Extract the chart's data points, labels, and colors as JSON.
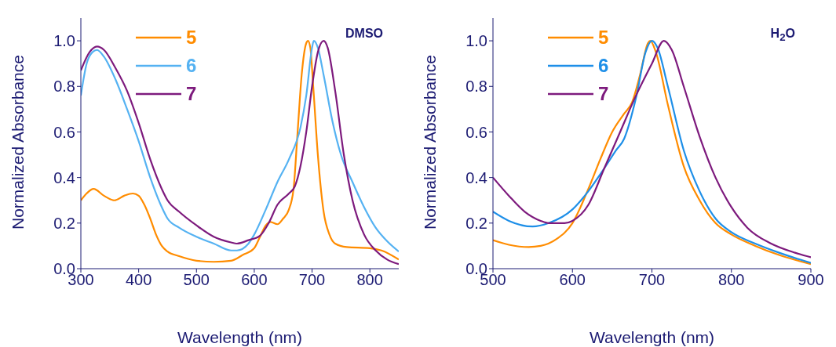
{
  "chart_data": [
    {
      "type": "line",
      "title": "DMSO",
      "xlabel": "Wavelength (nm)",
      "ylabel": "Normalized Absorbance",
      "xlim": [
        300,
        850
      ],
      "xticks": [
        300,
        400,
        500,
        600,
        700,
        800
      ],
      "ylim": [
        0,
        1.1
      ],
      "yticks": [
        {
          "value": 0,
          "label": "0.0"
        },
        {
          "value": 0.2,
          "label": "0.2"
        },
        {
          "value": 0.4,
          "label": "0.4"
        },
        {
          "value": 0.6,
          "label": "0.6"
        },
        {
          "value": 0.8,
          "label": "0.8"
        },
        {
          "value": 1,
          "label": "1.0"
        }
      ],
      "legend": "top left",
      "series": [
        {
          "name": "5",
          "color": "#ff8c00",
          "x": [
            300,
            310,
            322,
            340,
            358,
            375,
            390,
            400,
            410,
            420,
            430,
            440,
            450,
            470,
            500,
            530,
            560,
            580,
            600,
            610,
            620,
            628,
            640,
            650,
            660,
            668,
            675,
            682,
            690,
            693,
            697,
            702,
            710,
            720,
            730,
            740,
            760,
            800,
            820,
            850
          ],
          "values": [
            0.3,
            0.33,
            0.35,
            0.32,
            0.3,
            0.32,
            0.33,
            0.32,
            0.28,
            0.22,
            0.15,
            0.1,
            0.075,
            0.055,
            0.035,
            0.03,
            0.035,
            0.06,
            0.09,
            0.14,
            0.19,
            0.205,
            0.195,
            0.22,
            0.26,
            0.35,
            0.6,
            0.85,
            0.99,
            1.0,
            0.97,
            0.8,
            0.5,
            0.25,
            0.15,
            0.11,
            0.095,
            0.09,
            0.08,
            0.04
          ]
        },
        {
          "name": "6",
          "color": "#55b2f2",
          "x": [
            300,
            310,
            320,
            328,
            340,
            360,
            380,
            400,
            420,
            440,
            450,
            470,
            500,
            530,
            560,
            570,
            590,
            600,
            620,
            640,
            660,
            680,
            690,
            700,
            703,
            710,
            720,
            735,
            750,
            770,
            790,
            810,
            830,
            850
          ],
          "values": [
            0.76,
            0.9,
            0.95,
            0.96,
            0.93,
            0.83,
            0.7,
            0.56,
            0.4,
            0.27,
            0.22,
            0.18,
            0.14,
            0.11,
            0.08,
            0.08,
            0.11,
            0.15,
            0.26,
            0.38,
            0.48,
            0.62,
            0.76,
            0.97,
            1.0,
            0.97,
            0.85,
            0.65,
            0.5,
            0.38,
            0.27,
            0.18,
            0.12,
            0.075
          ]
        },
        {
          "name": "7",
          "color": "#7d1a7d",
          "x": [
            300,
            315,
            328,
            340,
            360,
            380,
            400,
            420,
            440,
            450,
            470,
            500,
            530,
            560,
            570,
            590,
            610,
            625,
            640,
            660,
            670,
            680,
            690,
            700,
            710,
            720,
            727,
            740,
            755,
            770,
            790,
            810,
            830,
            850
          ],
          "values": [
            0.87,
            0.95,
            0.975,
            0.96,
            0.88,
            0.78,
            0.64,
            0.48,
            0.35,
            0.3,
            0.25,
            0.19,
            0.14,
            0.115,
            0.11,
            0.125,
            0.145,
            0.2,
            0.28,
            0.33,
            0.36,
            0.45,
            0.6,
            0.8,
            0.95,
            1.0,
            0.97,
            0.78,
            0.5,
            0.3,
            0.15,
            0.08,
            0.04,
            0.02
          ]
        }
      ]
    },
    {
      "type": "line",
      "title": "H$_{2}$O",
      "xlabel": "Wavelength (nm)",
      "ylabel": "Normalized Absorbance",
      "xlim": [
        500,
        900
      ],
      "xticks": [
        500,
        600,
        700,
        800,
        900
      ],
      "ylim": [
        0,
        1.1
      ],
      "yticks": [
        {
          "value": 0,
          "label": "0.0"
        },
        {
          "value": 0.2,
          "label": "0.2"
        },
        {
          "value": 0.4,
          "label": "0.4"
        },
        {
          "value": 0.6,
          "label": "0.6"
        },
        {
          "value": 0.8,
          "label": "0.8"
        },
        {
          "value": 1,
          "label": "1.0"
        }
      ],
      "legend": "top left",
      "series": [
        {
          "name": "5",
          "color": "#ff8c00",
          "x": [
            500,
            520,
            545,
            560,
            580,
            600,
            620,
            635,
            650,
            665,
            675,
            685,
            695,
            698,
            705,
            720,
            740,
            760,
            780,
            800,
            830,
            860,
            900
          ],
          "values": [
            0.125,
            0.105,
            0.095,
            0.1,
            0.13,
            0.2,
            0.35,
            0.48,
            0.6,
            0.68,
            0.73,
            0.85,
            0.99,
            1.0,
            0.95,
            0.72,
            0.45,
            0.3,
            0.2,
            0.15,
            0.1,
            0.06,
            0.02
          ]
        },
        {
          "name": "6",
          "color": "#1e8fe8",
          "x": [
            500,
            520,
            550,
            570,
            600,
            620,
            640,
            655,
            665,
            680,
            692,
            700,
            707,
            720,
            740,
            760,
            780,
            800,
            830,
            860,
            900
          ],
          "values": [
            0.25,
            0.21,
            0.185,
            0.2,
            0.26,
            0.34,
            0.44,
            0.52,
            0.57,
            0.75,
            0.95,
            1.0,
            0.97,
            0.8,
            0.52,
            0.34,
            0.22,
            0.16,
            0.11,
            0.07,
            0.025
          ]
        },
        {
          "name": "7",
          "color": "#7d1a7d",
          "x": [
            500,
            520,
            540,
            560,
            570,
            590,
            600,
            620,
            640,
            660,
            680,
            700,
            715,
            725,
            740,
            760,
            780,
            800,
            820,
            850,
            880,
            900
          ],
          "values": [
            0.4,
            0.32,
            0.25,
            0.21,
            0.2,
            0.2,
            0.21,
            0.28,
            0.44,
            0.6,
            0.76,
            0.9,
            1.0,
            0.96,
            0.8,
            0.58,
            0.4,
            0.27,
            0.18,
            0.11,
            0.07,
            0.05
          ]
        }
      ]
    }
  ]
}
